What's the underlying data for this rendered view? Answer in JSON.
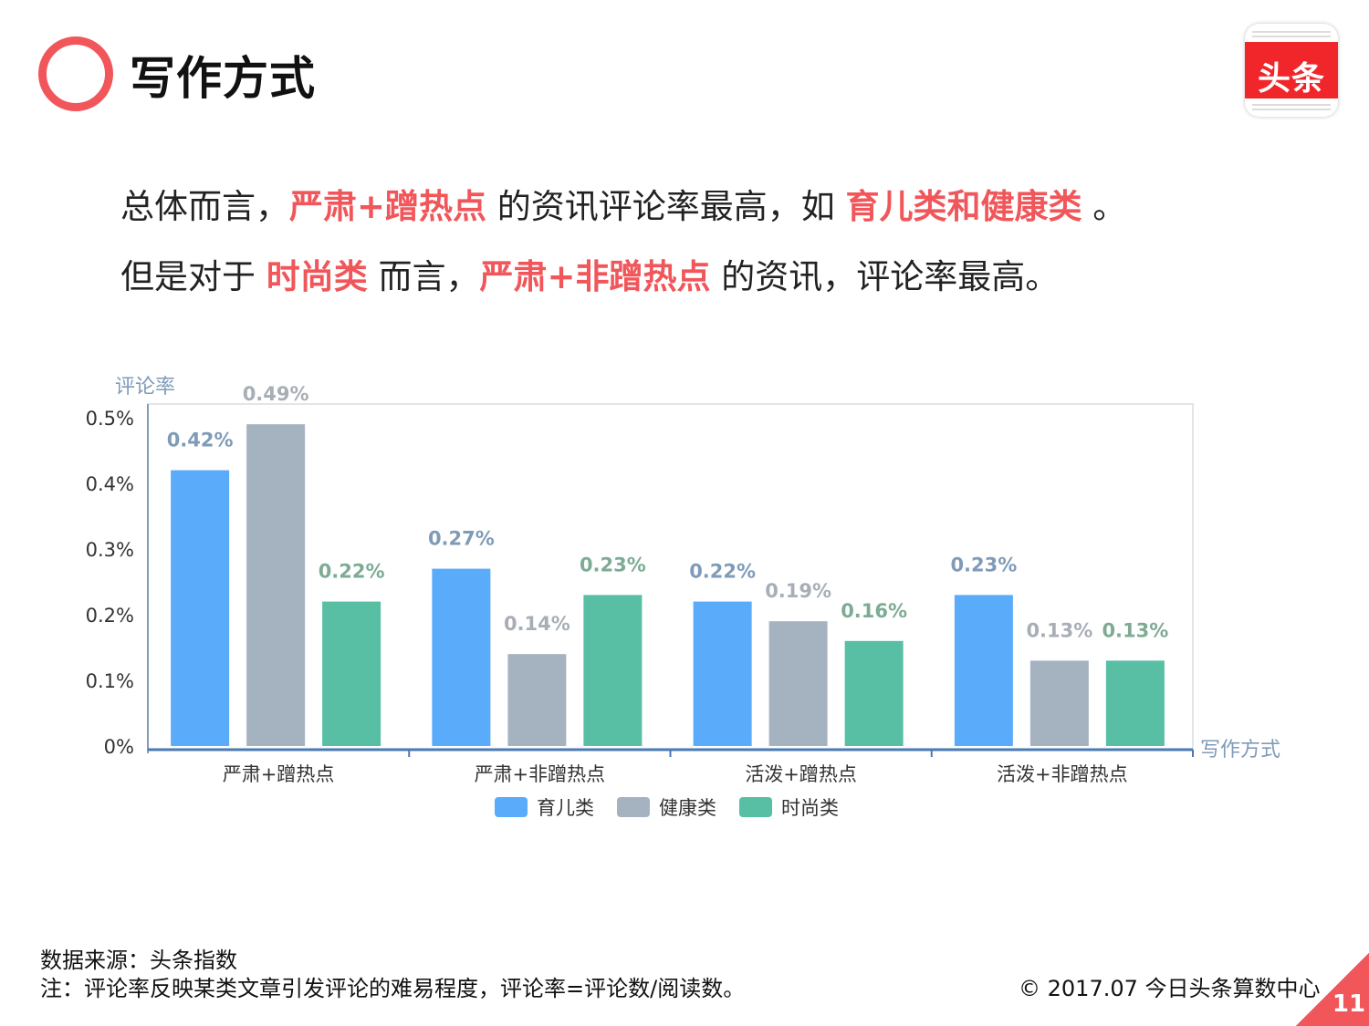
{
  "header": {
    "title": "写作方式",
    "logo_text": "头条"
  },
  "summary": {
    "line1": [
      {
        "text": "总体而言，",
        "highlight": false
      },
      {
        "text": "严肃+蹭热点",
        "highlight": true
      },
      {
        "text": " 的资讯评论率最高，如 ",
        "highlight": false
      },
      {
        "text": "育儿类和健康类",
        "highlight": true
      },
      {
        "text": " 。",
        "highlight": false
      }
    ],
    "line2": [
      {
        "text": "但是对于 ",
        "highlight": false
      },
      {
        "text": "时尚类",
        "highlight": true
      },
      {
        "text": " 而言，",
        "highlight": false
      },
      {
        "text": "严肃+非蹭热点",
        "highlight": true
      },
      {
        "text": " 的资讯，评论率最高。",
        "highlight": false
      }
    ]
  },
  "chart_data": {
    "type": "bar",
    "ylabel": "评论率",
    "xlabel": "写作方式",
    "categories": [
      "严肃+蹭热点",
      "严肃+非蹭热点",
      "活泼+蹭热点",
      "活泼+非蹭热点"
    ],
    "series": [
      {
        "name": "育儿类",
        "values": [
          0.42,
          0.27,
          0.22,
          0.23
        ],
        "labels": [
          "0.42%",
          "0.27%",
          "0.22%",
          "0.23%"
        ],
        "color": "#5aabfa",
        "label_color": "#7f9bb8"
      },
      {
        "name": "健康类",
        "values": [
          0.49,
          0.14,
          0.19,
          0.13
        ],
        "labels": [
          "0.49%",
          "0.14%",
          "0.19%",
          "0.13%"
        ],
        "color": "#a5b3c1",
        "label_color": "#a7aeb5"
      },
      {
        "name": "时尚类",
        "values": [
          0.22,
          0.23,
          0.16,
          0.13
        ],
        "labels": [
          "0.22%",
          "0.23%",
          "0.16%",
          "0.13%"
        ],
        "color": "#58bea4",
        "label_color": "#7dab93"
      }
    ],
    "yticks": [
      0,
      0.1,
      0.2,
      0.3,
      0.4,
      0.5
    ],
    "ytick_labels": [
      "0%",
      "0.1%",
      "0.2%",
      "0.3%",
      "0.4%",
      "0.5%"
    ],
    "ylim": [
      0,
      0.5
    ],
    "legend_position": "bottom"
  },
  "footer": {
    "source": "数据来源：头条指数",
    "note": "注：评论率反映某类文章引发评论的难易程度，评论率=评论数/阅读数。",
    "copyright": "© 2017.07 今日头条算数中心",
    "page_number": "11"
  }
}
